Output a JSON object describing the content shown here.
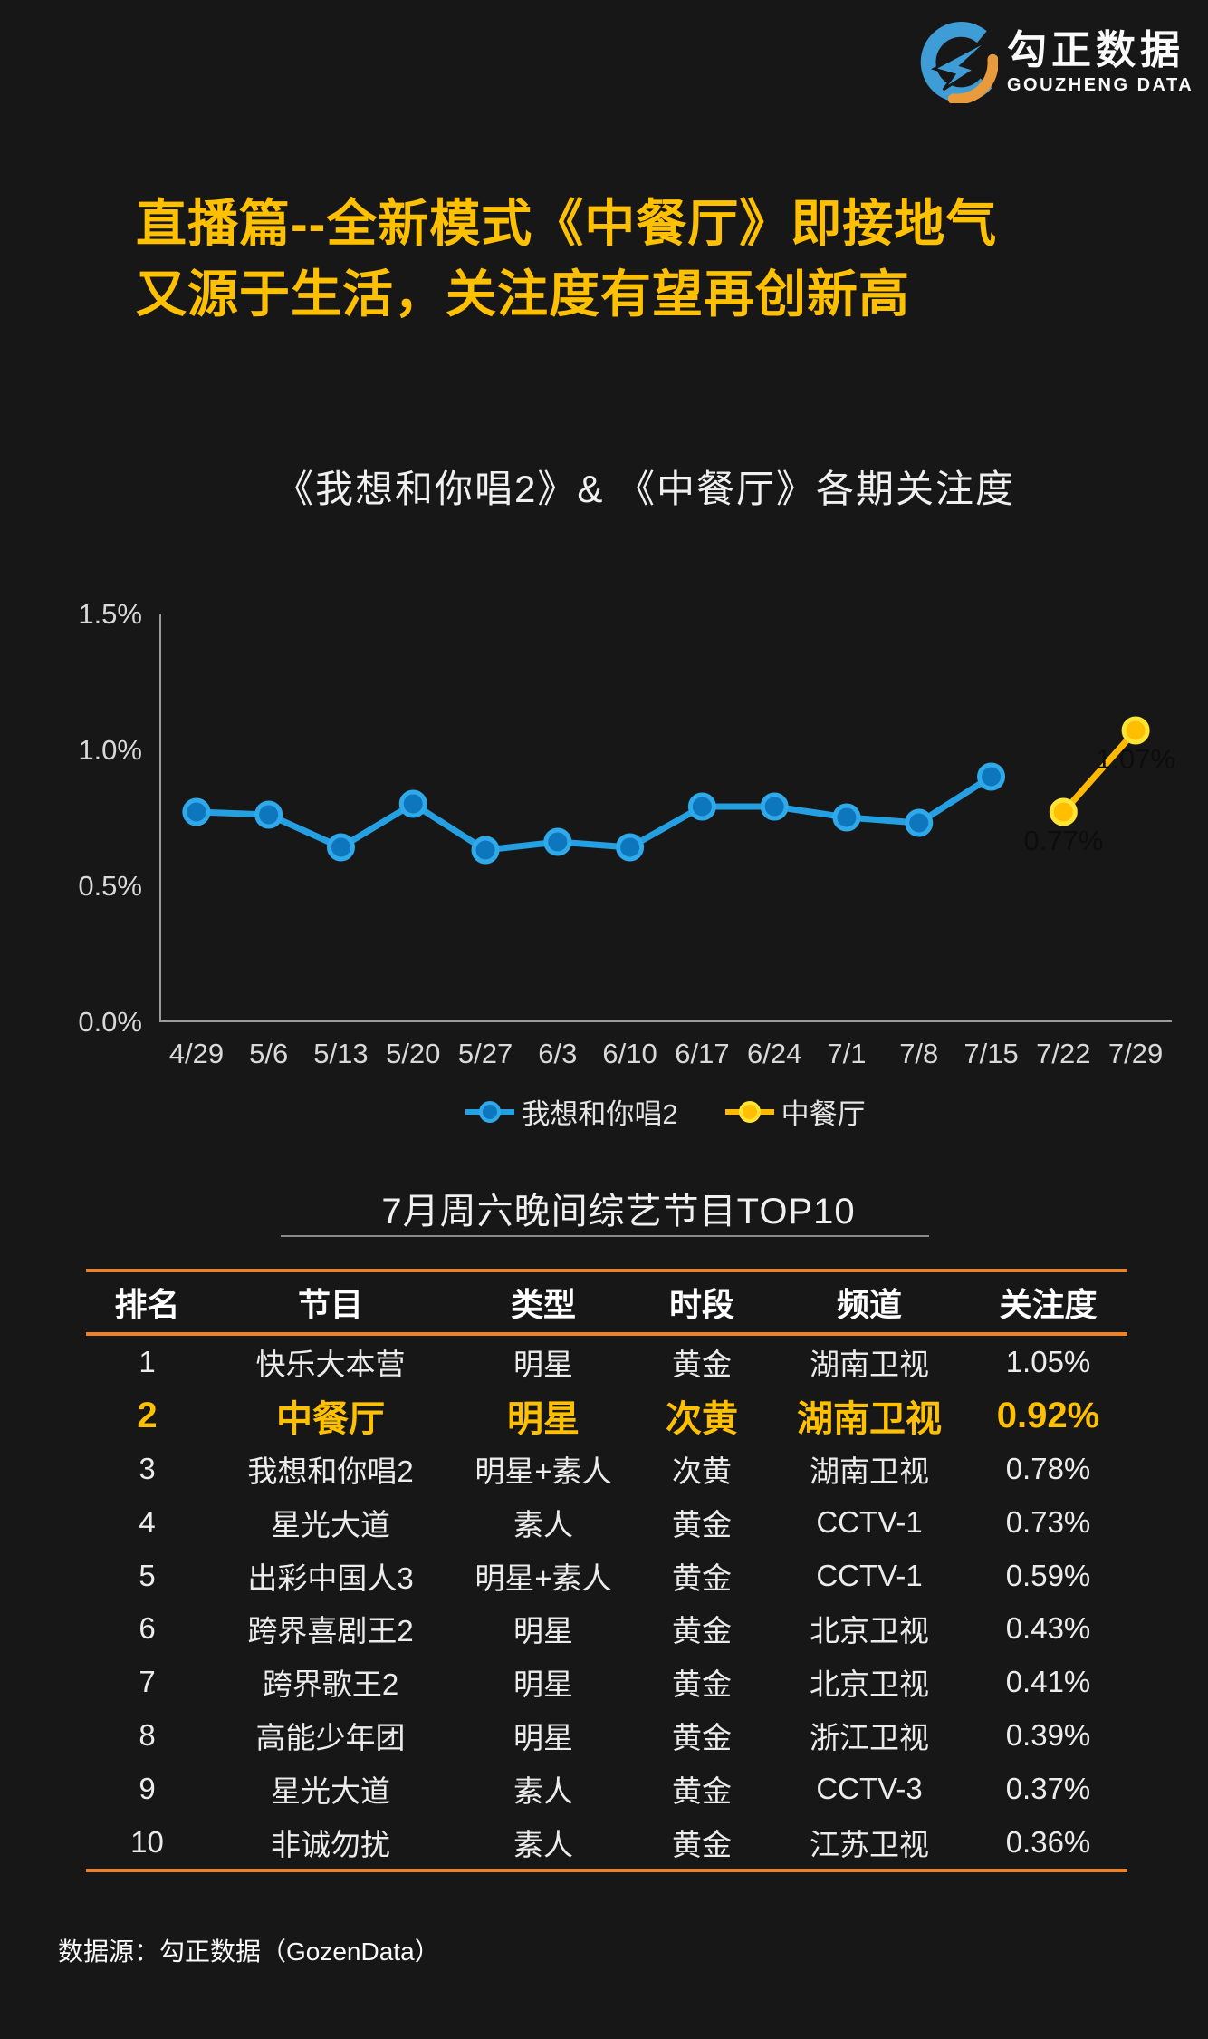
{
  "logo": {
    "name_cn": "勾正数据",
    "name_en": "GOUZHENG DATA",
    "blue": "#3E9CD6",
    "orange": "#E89A3D"
  },
  "headline": {
    "line1": "直播篇--全新模式《中餐厅》即接地气",
    "line2": "又源于生活，关注度有望再创新高",
    "color": "#FFC000"
  },
  "chart_data": {
    "type": "line",
    "title": "《我想和你唱2》& 《中餐厅》各期关注度",
    "categories": [
      "4/29",
      "5/6",
      "5/13",
      "5/20",
      "5/27",
      "6/3",
      "6/10",
      "6/17",
      "6/24",
      "7/1",
      "7/8",
      "7/15",
      "7/22",
      "7/29"
    ],
    "series": [
      {
        "name": "我想和你唱2",
        "color": "#24A0E2",
        "marker_fill": "#0E76BD",
        "marker_stroke": "#2FA9E9",
        "values": [
          0.77,
          0.76,
          0.64,
          0.8,
          0.63,
          0.66,
          0.64,
          0.79,
          0.79,
          0.75,
          0.73,
          0.9,
          null,
          null
        ]
      },
      {
        "name": "中餐厅",
        "color": "#FFB900",
        "marker_fill": "#FFBE00",
        "marker_stroke": "#FFE433",
        "values": [
          null,
          null,
          null,
          null,
          null,
          null,
          null,
          null,
          null,
          null,
          null,
          null,
          0.77,
          1.07
        ],
        "labels": [
          {
            "x": "7/22",
            "text": "0.77%"
          },
          {
            "x": "7/29",
            "text": "1.07%"
          }
        ]
      }
    ],
    "ylabel": "",
    "xlabel": "",
    "ylim": [
      0,
      1.5
    ],
    "yticks": [
      {
        "value": 0.0,
        "label": "0.0%"
      },
      {
        "value": 0.5,
        "label": "0.5%"
      },
      {
        "value": 1.0,
        "label": "1.0%"
      },
      {
        "value": 1.5,
        "label": "1.5%"
      }
    ],
    "grid": false,
    "legend_position": "bottom",
    "axis_color": "#9B9B9B",
    "tick_color": "#D9D9D9",
    "data_label_color": "#0D0D0D"
  },
  "table": {
    "title": "7月周六晚间综艺节目TOP10",
    "headers": [
      "排名",
      "节目",
      "类型",
      "时段",
      "频道",
      "关注度"
    ],
    "rows": [
      {
        "highlight": false,
        "cells": [
          "1",
          "快乐大本营",
          "明星",
          "黄金",
          "湖南卫视",
          "1.05%"
        ]
      },
      {
        "highlight": true,
        "cells": [
          "2",
          "中餐厅",
          "明星",
          "次黄",
          "湖南卫视",
          "0.92%"
        ]
      },
      {
        "highlight": false,
        "cells": [
          "3",
          "我想和你唱2",
          "明星+素人",
          "次黄",
          "湖南卫视",
          "0.78%"
        ]
      },
      {
        "highlight": false,
        "cells": [
          "4",
          "星光大道",
          "素人",
          "黄金",
          "CCTV-1",
          "0.73%"
        ]
      },
      {
        "highlight": false,
        "cells": [
          "5",
          "出彩中国人3",
          "明星+素人",
          "黄金",
          "CCTV-1",
          "0.59%"
        ]
      },
      {
        "highlight": false,
        "cells": [
          "6",
          "跨界喜剧王2",
          "明星",
          "黄金",
          "北京卫视",
          "0.43%"
        ]
      },
      {
        "highlight": false,
        "cells": [
          "7",
          "跨界歌王2",
          "明星",
          "黄金",
          "北京卫视",
          "0.41%"
        ]
      },
      {
        "highlight": false,
        "cells": [
          "8",
          "高能少年团",
          "明星",
          "黄金",
          "浙江卫视",
          "0.39%"
        ]
      },
      {
        "highlight": false,
        "cells": [
          "9",
          "星光大道",
          "素人",
          "黄金",
          "CCTV-3",
          "0.37%"
        ]
      },
      {
        "highlight": false,
        "cells": [
          "10",
          "非诚勿扰",
          "素人",
          "黄金",
          "江苏卫视",
          "0.36%"
        ]
      }
    ],
    "accent_color": "#E8832C",
    "highlight_color": "#FFC000"
  },
  "footer": {
    "source": "数据源：勾正数据（GozenData）"
  }
}
